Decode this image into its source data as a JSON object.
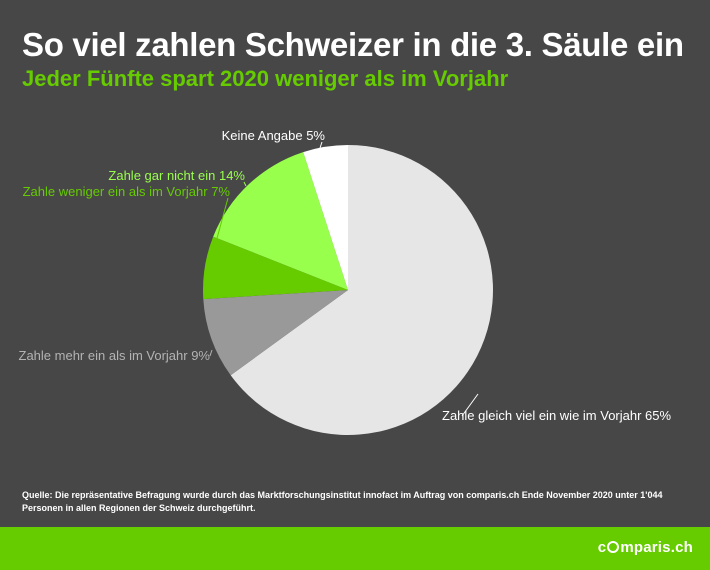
{
  "header": {
    "title": "So viel zahlen Schweizer in die 3. Säule ein",
    "subtitle": "Jeder Fünfte spart 2020 weniger als im Vorjahr"
  },
  "chart_data": {
    "type": "pie",
    "start_angle_deg": 0,
    "direction": "clockwise",
    "slices": [
      {
        "label": "Zahle gleich viel ein wie im Vorjahr 65%",
        "value": 65,
        "color": "#e6e6e6",
        "label_color": "#ffffff",
        "label_side": "right"
      },
      {
        "label": "Zahle mehr ein als im Vorjahr 9%",
        "value": 9,
        "color": "#999999",
        "label_color": "#b3b3b3",
        "label_side": "left"
      },
      {
        "label": "Zahle weniger ein als im Vorjahr 7%",
        "value": 7,
        "color": "#66cc00",
        "label_color": "#66cc00",
        "label_side": "left"
      },
      {
        "label": "Zahle gar nicht ein 14%",
        "value": 14,
        "color": "#99ff4d",
        "label_color": "#99ff4d",
        "label_side": "left"
      },
      {
        "label": "Keine Angabe 5%",
        "value": 5,
        "color": "#ffffff",
        "label_color": "#ffffff",
        "label_side": "left"
      }
    ]
  },
  "source_text": "Quelle: Die repräsentative Befragung wurde durch das Marktforschungsinstitut innofact im Auftrag von comparis.ch Ende November 2020 unter 1'044 Personen in allen Regionen der Schweiz durchgeführt.",
  "brand": {
    "prefix": "c",
    "suffix": "mparis.ch"
  }
}
